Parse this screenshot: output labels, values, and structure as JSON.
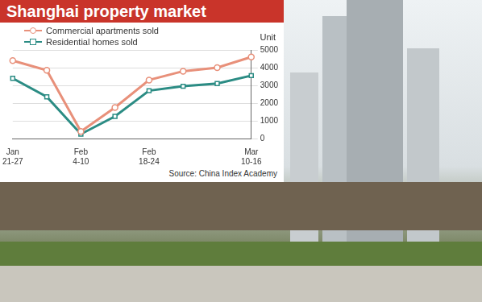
{
  "chart_data": {
    "type": "line",
    "title": "Shanghai property market",
    "y_label": "Unit",
    "source": "Source: China Index Academy",
    "categories": [
      "Jan 21-27",
      null,
      "Feb 4-10",
      null,
      "Feb 18-24",
      null,
      null,
      "Mar 10-16"
    ],
    "series": [
      {
        "name": "Commercial apartments sold",
        "color": "#e8907a",
        "marker": "circle",
        "values": [
          4400,
          3850,
          400,
          1750,
          3300,
          3800,
          4000,
          4600
        ]
      },
      {
        "name": "Residential homes sold",
        "color": "#2b8c84",
        "marker": "square",
        "values": [
          3400,
          2350,
          250,
          1250,
          2700,
          2950,
          3100,
          3550
        ]
      }
    ],
    "ylim": [
      0,
      5000
    ],
    "yticks": [
      0,
      1000,
      2000,
      3000,
      4000,
      5000
    ],
    "grid": true,
    "legend": "top-left"
  }
}
